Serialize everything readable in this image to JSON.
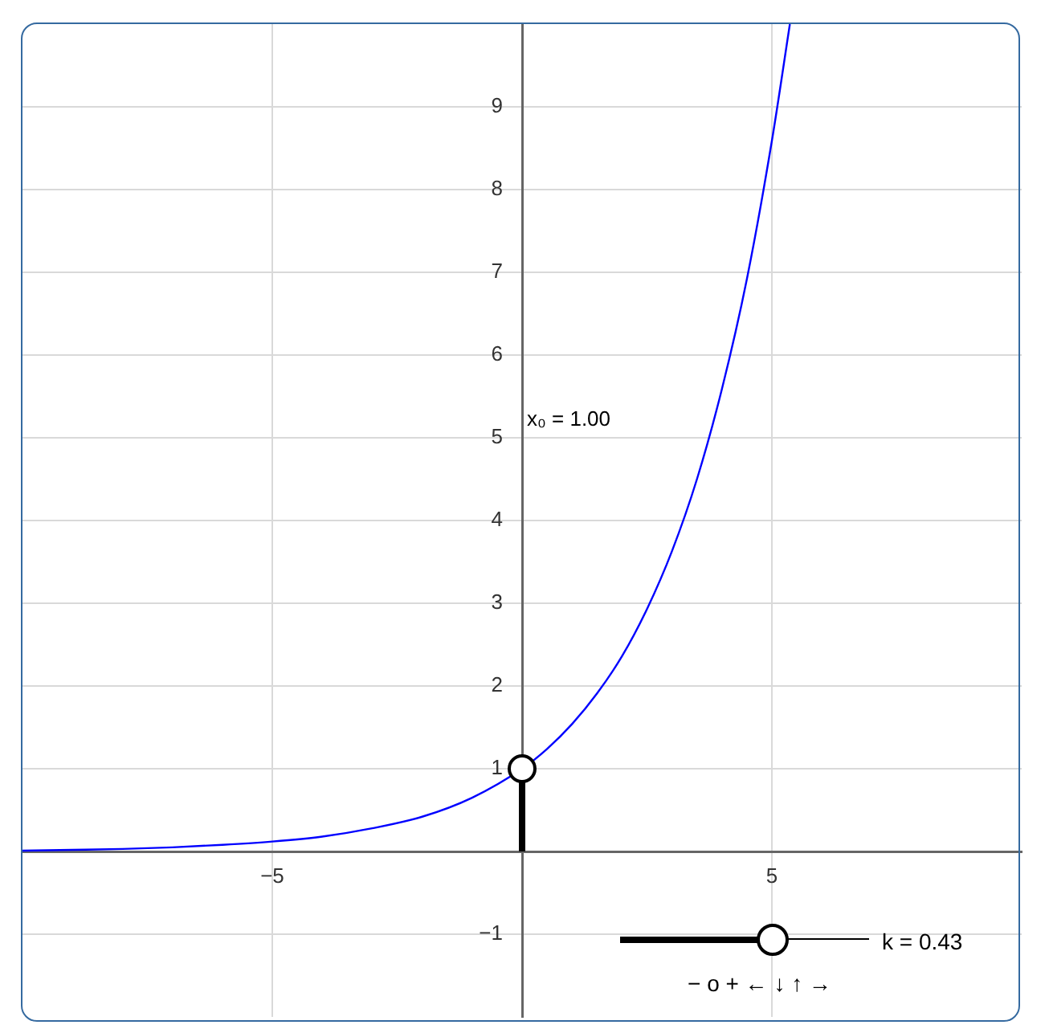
{
  "chart_data": {
    "type": "line",
    "xlim": [
      -10,
      10
    ],
    "ylim": [
      -2,
      10
    ],
    "xticks": [
      {
        "value": -5,
        "label": "−5"
      },
      {
        "value": 0,
        "label": null
      },
      5
    ],
    "yticks": [
      {
        "value": -1,
        "label": "−1"
      },
      {
        "value": 0,
        "label": null
      },
      1,
      2,
      3,
      4,
      5,
      6,
      7,
      8,
      9
    ],
    "grid": true,
    "legend": false,
    "series": [
      {
        "type": "line",
        "color": "#0000ff",
        "marker": "none",
        "x": [
          -10,
          -9,
          -8,
          -7,
          -6,
          -5,
          -4,
          -3,
          -2,
          -1,
          0,
          0.5,
          1,
          1.5,
          2,
          2.5,
          3,
          3.5,
          4,
          4.5,
          5,
          5.36
        ],
        "values": [
          0.01,
          0.02,
          0.03,
          0.05,
          0.08,
          0.12,
          0.18,
          0.28,
          0.42,
          0.65,
          1,
          1.24,
          1.54,
          1.91,
          2.36,
          2.93,
          3.63,
          4.5,
          5.59,
          6.92,
          8.59,
          10
        ]
      },
      {
        "type": "line",
        "color": "#000000",
        "marker": "none",
        "x": [
          0,
          0
        ],
        "values": [
          0,
          1
        ]
      },
      {
        "type": "scatter",
        "color": "#000000",
        "marker": "circle",
        "x": [
          0
        ],
        "values": [
          1
        ]
      }
    ],
    "annotations": [
      "x₀ = 1.00",
      "k = 0.43",
      "−  o  +  ←  ↓  ↑  →"
    ]
  }
}
